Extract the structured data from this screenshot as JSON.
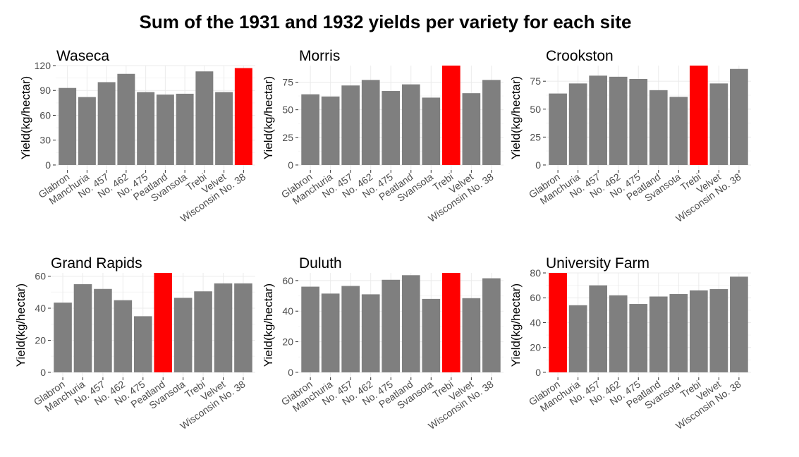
{
  "title": "Sum of the 1931 and 1932 yields per variety for each site",
  "colors": {
    "bar": "#7f7f7f",
    "highlight": "#ff0000",
    "grid_major": "#ebebeb",
    "grid_minor": "#f5f5f5",
    "tick": "#333333"
  },
  "chart_data": [
    {
      "type": "bar",
      "title": "Waseca",
      "ylabel": "Yield(kg/hectar)",
      "categories": [
        "Glabron",
        "Manchuria",
        "No. 457",
        "No. 462",
        "No. 475",
        "Peatland",
        "Svansota",
        "Trebi",
        "Velvet",
        "Wisconsin No. 38"
      ],
      "values": [
        93,
        82,
        100,
        110,
        88,
        85,
        86,
        113,
        88,
        117
      ],
      "highlight": "Wisconsin No. 38",
      "ylim": [
        0,
        120
      ],
      "yticks": [
        0,
        30,
        60,
        90,
        120
      ],
      "grid": true
    },
    {
      "type": "bar",
      "title": "Morris",
      "ylabel": "Yield(kg/hectar)",
      "categories": [
        "Glabron",
        "Manchuria",
        "No. 457",
        "No. 462",
        "No. 475",
        "Peatland",
        "Svansota",
        "Trebi",
        "Velvet",
        "Wisconsin No. 38"
      ],
      "values": [
        64,
        62,
        72,
        77,
        67,
        73,
        61,
        90,
        65,
        77
      ],
      "highlight": "Trebi",
      "ylim": [
        0,
        90
      ],
      "yticks": [
        0,
        25,
        50,
        75
      ],
      "grid": true
    },
    {
      "type": "bar",
      "title": "Crookston",
      "ylabel": "Yield(kg/hectar)",
      "categories": [
        "Glabron",
        "Manchuria",
        "No. 457",
        "No. 462",
        "No. 475",
        "Peatland",
        "Svansota",
        "Trebi",
        "Velvet",
        "Wisconsin No. 38"
      ],
      "values": [
        64,
        73,
        80,
        79,
        77,
        67,
        61,
        89,
        73,
        86
      ],
      "highlight": "Trebi",
      "ylim": [
        0,
        89
      ],
      "yticks": [
        0,
        25,
        50,
        75
      ],
      "grid": true
    },
    {
      "type": "bar",
      "title": "Grand Rapids",
      "ylabel": "Yield(kg/hectar)",
      "categories": [
        "Glabron",
        "Manchuria",
        "No. 457",
        "No. 462",
        "No. 475",
        "Peatland",
        "Svansota",
        "Trebi",
        "Velvet",
        "Wisconsin No. 38"
      ],
      "values": [
        43.5,
        55,
        52,
        45,
        35,
        62,
        46.5,
        50.5,
        55.5,
        55.5
      ],
      "highlight": "Peatland",
      "ylim": [
        0,
        62
      ],
      "yticks": [
        0,
        20,
        40,
        60
      ],
      "grid": true
    },
    {
      "type": "bar",
      "title": "Duluth",
      "ylabel": "Yield(kg/hectar)",
      "categories": [
        "Glabron",
        "Manchuria",
        "No. 457",
        "No. 462",
        "No. 475",
        "Peatland",
        "Svansota",
        "Trebi",
        "Velvet",
        "Wisconsin No. 38"
      ],
      "values": [
        56,
        51.5,
        56.5,
        51,
        60.5,
        63.5,
        48,
        65,
        48.5,
        61.5
      ],
      "highlight": "Trebi",
      "ylim": [
        0,
        65
      ],
      "yticks": [
        0,
        20,
        40,
        60
      ],
      "grid": true
    },
    {
      "type": "bar",
      "title": "University Farm",
      "ylabel": "Yield(kg/hectar)",
      "categories": [
        "Glabron",
        "Manchuria",
        "No. 457",
        "No. 462",
        "No. 475",
        "Peatland",
        "Svansota",
        "Trebi",
        "Velvet",
        "Wisconsin No. 38"
      ],
      "values": [
        80,
        54,
        70,
        62,
        55,
        61,
        63,
        66,
        67,
        77
      ],
      "highlight": "Glabron",
      "ylim": [
        0,
        80
      ],
      "yticks": [
        0,
        20,
        40,
        60,
        80
      ],
      "grid": true
    }
  ]
}
